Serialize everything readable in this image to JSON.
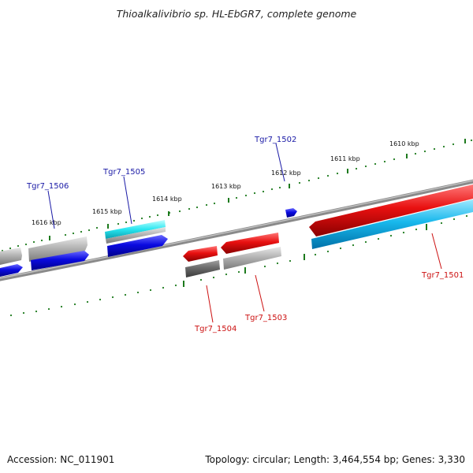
{
  "title": "Thioalkalivibrio sp. HL-EbGR7, complete genome",
  "footer": {
    "accession": "Accession: NC_011901",
    "stats": "Topology: circular; Length: 3,464,554 bp; Genes: 3,330"
  },
  "ticks": [
    "1616 kbp",
    "1615 kbp",
    "1614 kbp",
    "1613 kbp",
    "1612 kbp",
    "1611 kbp",
    "1610 kbp"
  ],
  "genes": {
    "forward": [
      "Tgr7_1506",
      "Tgr7_1505",
      "Tgr7_1502"
    ],
    "reverse": [
      "Tgr7_1504",
      "Tgr7_1503",
      "Tgr7_1501"
    ]
  },
  "colors": {
    "blue": "#0a0ae0",
    "red": "#e81010",
    "cyan": "#18b8ec",
    "gray": "#b4b4b4",
    "darkgray": "#6a6a6a",
    "tick_green": "#1d7a1d",
    "backbone": "#8a8a8a"
  }
}
